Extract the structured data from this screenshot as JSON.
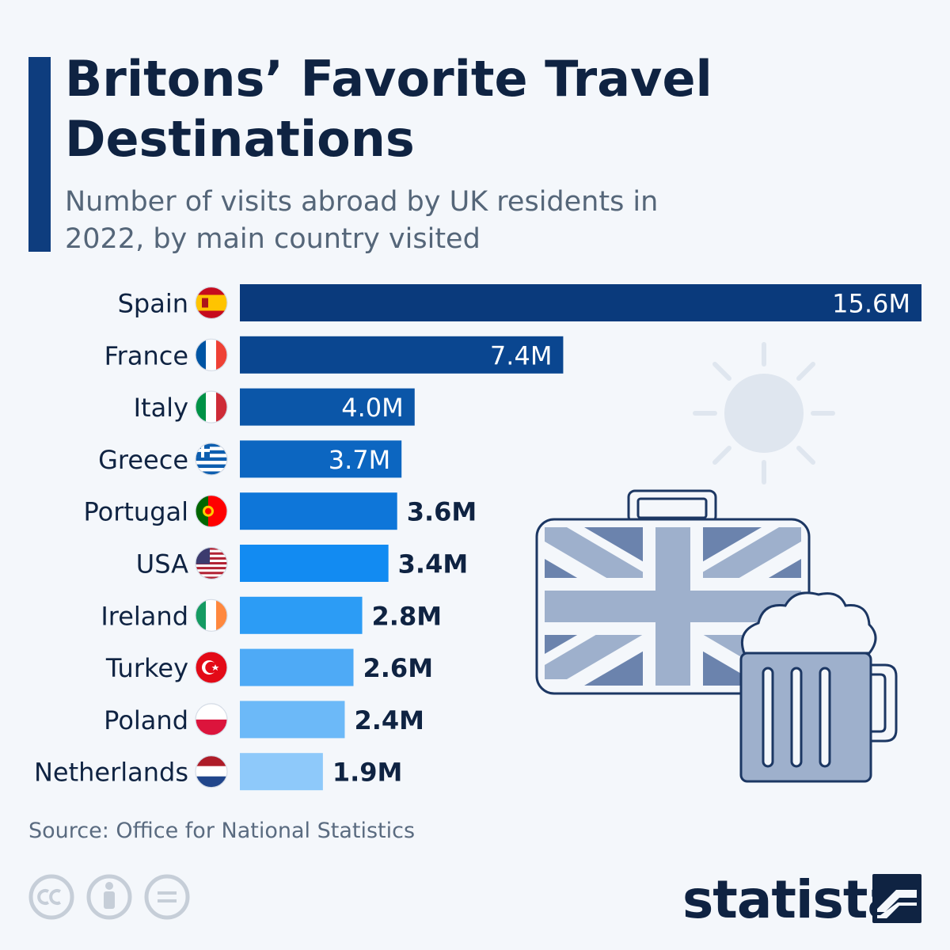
{
  "header": {
    "title": "Britons’ Favorite Travel Destinations",
    "subtitle": "Number of visits abroad by UK residents in 2022, by main country visited"
  },
  "footer": {
    "source": "Source: Office for National Statistics",
    "brand": "statista",
    "license_icons": [
      "cc-icon",
      "by-icon",
      "nd-icon"
    ]
  },
  "colors": {
    "title": "#0f2342",
    "accent": "#0e3d7e",
    "bars": [
      "#0a3a7c",
      "#0a4690",
      "#0b56a8",
      "#0c66c1",
      "#0e76d9",
      "#128bf2",
      "#2c9cf5",
      "#4eaaf6",
      "#6cb9f8",
      "#8ec9fa"
    ]
  },
  "chart_data": {
    "type": "bar",
    "orientation": "horizontal",
    "categories": [
      "Spain",
      "France",
      "Italy",
      "Greece",
      "Portugal",
      "USA",
      "Ireland",
      "Turkey",
      "Poland",
      "Netherlands"
    ],
    "values": [
      15.6,
      7.4,
      4.0,
      3.7,
      3.6,
      3.4,
      2.8,
      2.6,
      2.4,
      1.9
    ],
    "value_labels": [
      "15.6M",
      "7.4M",
      "4.0M",
      "3.7M",
      "3.6M",
      "3.4M",
      "2.8M",
      "2.6M",
      "2.4M",
      "1.9M"
    ],
    "flags": [
      "spain-flag-icon",
      "france-flag-icon",
      "italy-flag-icon",
      "greece-flag-icon",
      "portugal-flag-icon",
      "usa-flag-icon",
      "ireland-flag-icon",
      "turkey-flag-icon",
      "poland-flag-icon",
      "netherlands-flag-icon"
    ],
    "xlim": [
      0,
      15.6
    ],
    "grid": false,
    "legend": "none",
    "title": "",
    "xlabel": "",
    "ylabel": ""
  }
}
